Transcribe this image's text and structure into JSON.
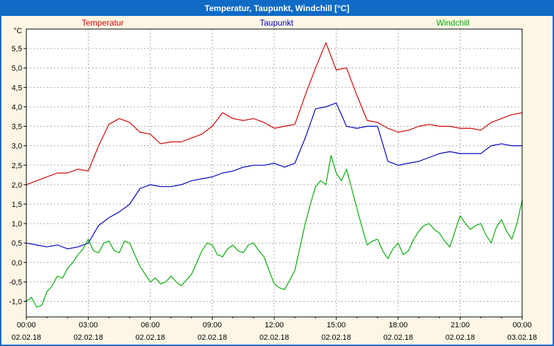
{
  "window": {
    "title": "Temperatur, Taupunkt, Windchill [°C]"
  },
  "legend": [
    {
      "label": "Temperatur",
      "color": "#cc0000"
    },
    {
      "label": "Taupunkt",
      "color": "#0000bb"
    },
    {
      "label": "Windchill",
      "color": "#00aa00"
    }
  ],
  "chart_data": {
    "type": "line",
    "title": "Temperatur, Taupunkt, Windchill [°C]",
    "ylabel": "°C",
    "xlabel": "",
    "ylim": [
      -1.4,
      6.0
    ],
    "yticks": {
      "min": -1.0,
      "max": 5.5,
      "step": 0.5,
      "decimal_separator": ","
    },
    "xlim": [
      0,
      24
    ],
    "x_unit": "hours",
    "grid": true,
    "legend_position": "top",
    "x_major_ticks": [
      0,
      3,
      6,
      9,
      12,
      15,
      18,
      21,
      24
    ],
    "x_tick_times": [
      "00:00",
      "03:00",
      "06:00",
      "09:00",
      "12:00",
      "15:00",
      "18:00",
      "21:00",
      "00:00"
    ],
    "x_tick_dates": [
      "02.02.18",
      "02.02.18",
      "02.02.18",
      "02.02.18",
      "02.02.18",
      "02.02.18",
      "02.02.18",
      "02.02.18",
      "03.02.18"
    ],
    "series": [
      {
        "name": "Temperatur",
        "color": "#cc0000",
        "x_start": 0,
        "x_step": 0.5,
        "values": [
          2.0,
          2.1,
          2.2,
          2.3,
          2.3,
          2.4,
          2.35,
          3.0,
          3.55,
          3.7,
          3.6,
          3.35,
          3.3,
          3.05,
          3.1,
          3.1,
          3.2,
          3.3,
          3.5,
          3.85,
          3.7,
          3.65,
          3.7,
          3.6,
          3.45,
          3.5,
          3.55,
          4.3,
          5.0,
          5.65,
          4.95,
          5.0,
          4.3,
          3.65,
          3.6,
          3.45,
          3.35,
          3.4,
          3.5,
          3.55,
          3.5,
          3.5,
          3.45,
          3.45,
          3.4,
          3.6,
          3.7,
          3.8,
          3.85
        ]
      },
      {
        "name": "Taupunkt",
        "color": "#0000bb",
        "x_start": 0,
        "x_step": 0.5,
        "values": [
          0.5,
          0.45,
          0.4,
          0.45,
          0.35,
          0.4,
          0.5,
          0.95,
          1.15,
          1.3,
          1.5,
          1.9,
          2.0,
          1.95,
          1.95,
          2.0,
          2.1,
          2.15,
          2.2,
          2.3,
          2.35,
          2.45,
          2.5,
          2.5,
          2.55,
          2.45,
          2.55,
          3.2,
          3.95,
          4.0,
          4.1,
          3.5,
          3.45,
          3.5,
          3.5,
          2.6,
          2.5,
          2.55,
          2.6,
          2.7,
          2.8,
          2.85,
          2.8,
          2.8,
          2.8,
          3.0,
          3.05,
          3.0,
          3.0
        ]
      },
      {
        "name": "Windchill",
        "color": "#00aa00",
        "x_start": 0,
        "x_step": 0.25,
        "values": [
          -1.0,
          -0.9,
          -1.15,
          -1.1,
          -0.75,
          -0.6,
          -0.35,
          -0.4,
          -0.15,
          0.0,
          0.2,
          0.35,
          0.6,
          0.3,
          0.25,
          0.5,
          0.55,
          0.3,
          0.25,
          0.55,
          0.5,
          0.2,
          -0.1,
          -0.3,
          -0.5,
          -0.4,
          -0.55,
          -0.5,
          -0.35,
          -0.5,
          -0.6,
          -0.45,
          -0.3,
          0.0,
          0.3,
          0.5,
          0.45,
          0.2,
          0.15,
          0.35,
          0.45,
          0.3,
          0.25,
          0.45,
          0.5,
          0.3,
          0.15,
          -0.2,
          -0.55,
          -0.65,
          -0.7,
          -0.45,
          -0.2,
          0.4,
          1.0,
          1.5,
          1.95,
          2.1,
          2.0,
          2.75,
          2.3,
          2.1,
          2.4,
          1.9,
          1.4,
          0.9,
          0.45,
          0.55,
          0.6,
          0.3,
          0.1,
          0.35,
          0.5,
          0.2,
          0.3,
          0.6,
          0.8,
          0.95,
          1.0,
          0.85,
          0.75,
          0.55,
          0.4,
          0.8,
          1.2,
          1.0,
          0.85,
          0.95,
          1.0,
          0.7,
          0.5,
          0.9,
          1.1,
          0.8,
          0.6,
          1.0,
          1.6
        ]
      }
    ]
  }
}
